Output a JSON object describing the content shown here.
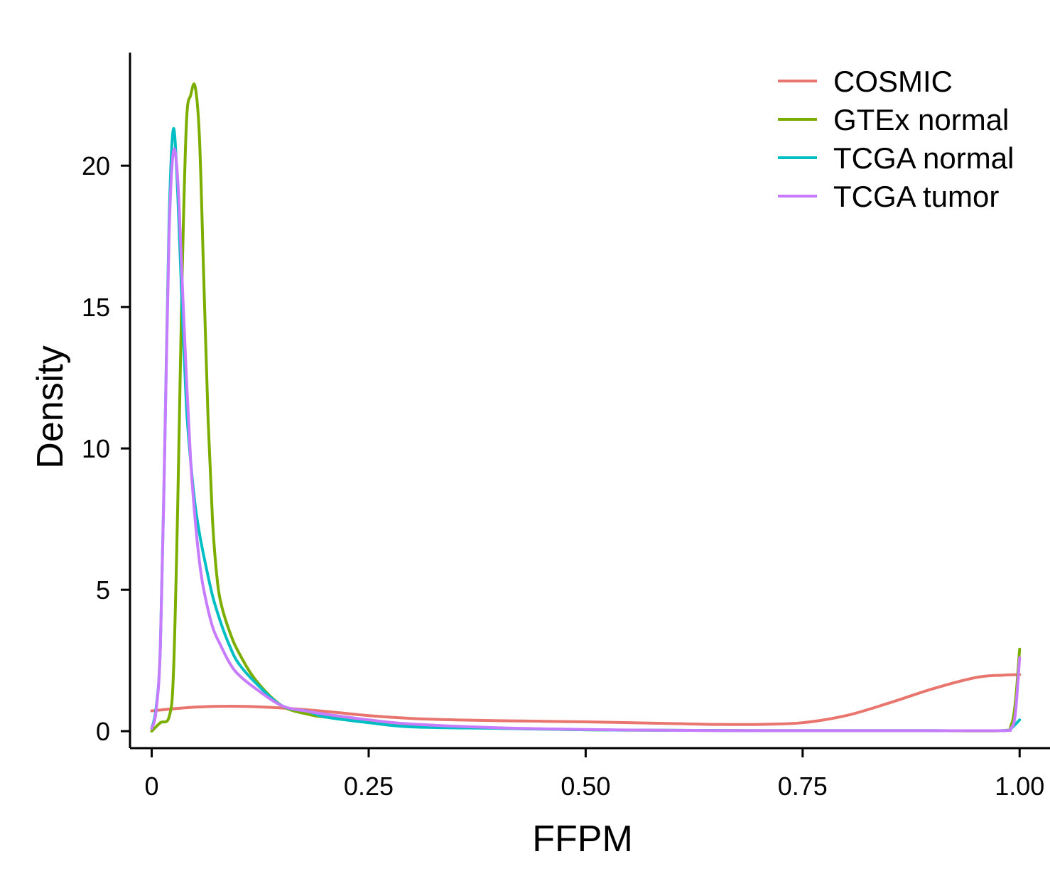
{
  "chart_data": {
    "type": "line",
    "title": "",
    "xlabel": "FFPM",
    "ylabel": "Density",
    "xlim": [
      -0.025,
      1.035
    ],
    "ylim": [
      -0.6,
      24.0
    ],
    "x_ticks": [
      0,
      0.25,
      0.5,
      0.75,
      1.0
    ],
    "x_tick_labels": [
      "0",
      "0.25",
      "0.50",
      "0.75",
      "1.00"
    ],
    "y_ticks": [
      0,
      5,
      10,
      15,
      20
    ],
    "y_tick_labels": [
      "0",
      "5",
      "10",
      "15",
      "20"
    ],
    "grid": false,
    "legend_position": "top-right",
    "series": [
      {
        "name": "COSMIC",
        "color": "#E8756E",
        "x": [
          0,
          0.05,
          0.1,
          0.15,
          0.2,
          0.25,
          0.3,
          0.35,
          0.4,
          0.45,
          0.5,
          0.55,
          0.6,
          0.65,
          0.7,
          0.75,
          0.8,
          0.85,
          0.9,
          0.95,
          0.98,
          1.0
        ],
        "y": [
          0.72,
          0.85,
          0.88,
          0.82,
          0.7,
          0.55,
          0.45,
          0.4,
          0.37,
          0.35,
          0.33,
          0.3,
          0.27,
          0.24,
          0.24,
          0.3,
          0.55,
          1.0,
          1.5,
          1.9,
          1.98,
          2.0
        ]
      },
      {
        "name": "GTEx normal",
        "color": "#7CAE00",
        "x": [
          0,
          0.01,
          0.02,
          0.025,
          0.03,
          0.035,
          0.04,
          0.045,
          0.05,
          0.055,
          0.06,
          0.065,
          0.07,
          0.075,
          0.08,
          0.09,
          0.1,
          0.12,
          0.15,
          0.18,
          0.2,
          0.25,
          0.3,
          0.4,
          0.5,
          0.6,
          0.7,
          0.8,
          0.9,
          0.98,
          0.99,
          0.995,
          1.0
        ],
        "y": [
          0,
          0.3,
          0.5,
          2.0,
          8.0,
          16.0,
          21.5,
          22.5,
          22.8,
          21.0,
          16.0,
          11.0,
          7.5,
          5.5,
          4.5,
          3.5,
          2.8,
          1.8,
          0.9,
          0.6,
          0.5,
          0.35,
          0.2,
          0.1,
          0.05,
          0.03,
          0.02,
          0.02,
          0.02,
          0.02,
          0.2,
          1.0,
          2.9
        ]
      },
      {
        "name": "TCGA normal",
        "color": "#00BFC4",
        "x": [
          0,
          0.005,
          0.01,
          0.015,
          0.02,
          0.025,
          0.03,
          0.035,
          0.04,
          0.045,
          0.05,
          0.055,
          0.06,
          0.07,
          0.08,
          0.09,
          0.1,
          0.12,
          0.15,
          0.18,
          0.2,
          0.25,
          0.3,
          0.4,
          0.5,
          0.6,
          0.7,
          0.8,
          0.9,
          0.98,
          0.99,
          1.0
        ],
        "y": [
          0.1,
          0.8,
          3.0,
          10.0,
          18.0,
          21.3,
          19.0,
          15.0,
          11.5,
          9.5,
          8.0,
          7.0,
          6.2,
          4.8,
          3.8,
          3.0,
          2.4,
          1.7,
          0.9,
          0.7,
          0.5,
          0.3,
          0.15,
          0.1,
          0.05,
          0.03,
          0.02,
          0.02,
          0.02,
          0.02,
          0.1,
          0.4
        ]
      },
      {
        "name": "TCGA tumor",
        "color": "#C77CFF",
        "x": [
          0,
          0.005,
          0.01,
          0.015,
          0.02,
          0.025,
          0.03,
          0.035,
          0.04,
          0.045,
          0.05,
          0.055,
          0.06,
          0.07,
          0.08,
          0.09,
          0.1,
          0.12,
          0.15,
          0.18,
          0.2,
          0.25,
          0.3,
          0.4,
          0.5,
          0.6,
          0.7,
          0.8,
          0.9,
          0.98,
          0.99,
          0.995,
          1.0
        ],
        "y": [
          0.1,
          0.7,
          3.0,
          10.0,
          17.5,
          20.5,
          19.5,
          16.0,
          12.5,
          9.5,
          7.5,
          6.0,
          5.0,
          3.7,
          3.0,
          2.4,
          2.0,
          1.5,
          0.9,
          0.7,
          0.6,
          0.4,
          0.25,
          0.12,
          0.06,
          0.03,
          0.02,
          0.02,
          0.02,
          0.02,
          0.1,
          0.6,
          2.6
        ]
      }
    ]
  }
}
